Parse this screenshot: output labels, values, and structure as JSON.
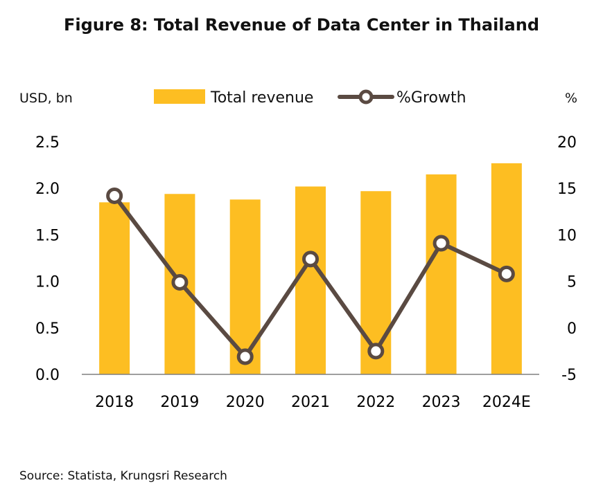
{
  "title": "Figure 8: Total Revenue of Data Center in Thailand",
  "source": "Source: Statista, Krungsri Research",
  "colors": {
    "bar": "#FDBE22",
    "line": "#5A4A42",
    "marker_fill": "#FFFFFF",
    "axis": "#7F7F7F"
  },
  "chart_data": {
    "type": "bar",
    "title": "Figure 8: Total Revenue of Data Center in Thailand",
    "categories": [
      "2018",
      "2019",
      "2020",
      "2021",
      "2022",
      "2023",
      "2024E"
    ],
    "y_left_label": "USD, bn",
    "y_right_label": "%",
    "y_left_ticks": [
      "0.0",
      "0.5",
      "1.0",
      "1.5",
      "2.0",
      "2.5"
    ],
    "y_right_ticks": [
      "-5",
      "0",
      "5",
      "10",
      "15",
      "20"
    ],
    "ylim_left": [
      0,
      2.5
    ],
    "ylim_right": [
      -5,
      20
    ],
    "grid": false,
    "legend_position": "top-center",
    "series": [
      {
        "name": "Total revenue",
        "type": "bar",
        "axis": "left",
        "values": [
          1.85,
          1.94,
          1.88,
          2.02,
          1.97,
          2.15,
          2.27
        ]
      },
      {
        "name": "%Growth",
        "type": "line",
        "axis": "right",
        "values": [
          14.2,
          4.9,
          -3.1,
          7.4,
          -2.5,
          9.1,
          5.8
        ]
      }
    ]
  }
}
